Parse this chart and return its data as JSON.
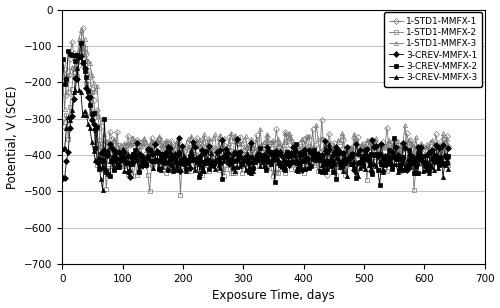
{
  "title": "",
  "xlabel": "Exposure Time, days",
  "ylabel": "Potential, V (SCE)",
  "xlim": [
    0,
    700
  ],
  "ylim": [
    -700,
    0
  ],
  "yticks": [
    0,
    -100,
    -200,
    -300,
    -400,
    -500,
    -600,
    -700
  ],
  "xticks": [
    0,
    100,
    200,
    300,
    400,
    500,
    600,
    700
  ],
  "series": [
    {
      "label": "1-STD1-MMFX-1",
      "marker": "D",
      "marker_size": 3,
      "color": "#777777",
      "fillstyle": "none",
      "linewidth": 0.6
    },
    {
      "label": "1-STD1-MMFX-2",
      "marker": "s",
      "marker_size": 3,
      "color": "#777777",
      "fillstyle": "none",
      "linewidth": 0.6
    },
    {
      "label": "1-STD1-MMFX-3",
      "marker": "^",
      "marker_size": 3,
      "color": "#777777",
      "fillstyle": "none",
      "linewidth": 0.6
    },
    {
      "label": "3-CREV-MMFX-1",
      "marker": "D",
      "marker_size": 3,
      "color": "#000000",
      "fillstyle": "full",
      "linewidth": 0.6
    },
    {
      "label": "3-CREV-MMFX-2",
      "marker": "s",
      "marker_size": 3,
      "color": "#000000",
      "fillstyle": "full",
      "linewidth": 0.6
    },
    {
      "label": "3-CREV-MMFX-3",
      "marker": "^",
      "marker_size": 3,
      "color": "#000000",
      "fillstyle": "full",
      "linewidth": 0.6
    }
  ],
  "background_color": "#ffffff",
  "legend_fontsize": 6.5,
  "axis_fontsize": 8.5,
  "tick_fontsize": 7.5
}
